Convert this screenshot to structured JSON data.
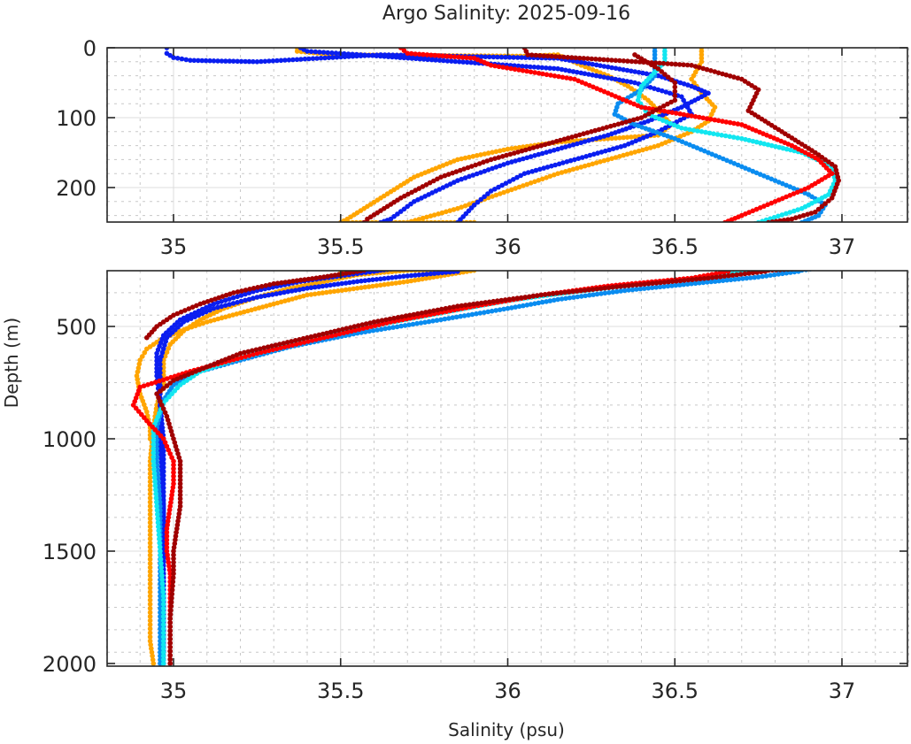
{
  "chart_data": {
    "type": "scatter",
    "title": "Argo Salinity: 2025-09-16",
    "xlabel": "Salinity (psu)",
    "ylabel": "Depth (m)",
    "xlim": [
      34.8,
      37.2
    ],
    "x_ticks": [
      35,
      35.5,
      36,
      36.5,
      37
    ],
    "x_tick_labels": [
      "35",
      "35.5",
      "36",
      "36.5",
      "37"
    ],
    "grid": true,
    "y_reversed": true,
    "panels": [
      {
        "name": "upper",
        "ylim": [
          0,
          250
        ],
        "y_ticks": [
          0,
          100,
          200
        ],
        "y_tick_labels": [
          "0",
          "100",
          "200"
        ]
      },
      {
        "name": "lower",
        "ylim": [
          250,
          2010
        ],
        "y_ticks": [
          500,
          1000,
          1500,
          2000
        ],
        "y_tick_labels": [
          "500",
          "1000",
          "1500",
          "2000"
        ]
      }
    ],
    "series": [
      {
        "name": "profile-orange-a",
        "color": "#FFA500",
        "points": [
          [
            35.37,
            0
          ],
          [
            35.37,
            5
          ],
          [
            35.48,
            10
          ],
          [
            36.05,
            12
          ],
          [
            36.15,
            10
          ],
          [
            36.22,
            25
          ],
          [
            36.3,
            40
          ],
          [
            36.36,
            55
          ],
          [
            36.42,
            75
          ],
          [
            36.46,
            95
          ],
          [
            36.49,
            110
          ],
          [
            36.45,
            125
          ],
          [
            36.3,
            130
          ],
          [
            36.15,
            135
          ],
          [
            36.0,
            145
          ],
          [
            35.85,
            160
          ],
          [
            35.72,
            185
          ],
          [
            35.62,
            215
          ],
          [
            35.52,
            245
          ],
          [
            35.5,
            250
          ],
          [
            35.9,
            250
          ],
          [
            35.8,
            275
          ],
          [
            35.7,
            300
          ],
          [
            35.55,
            330
          ],
          [
            35.4,
            360
          ],
          [
            35.3,
            400
          ],
          [
            35.2,
            440
          ],
          [
            35.1,
            480
          ],
          [
            35.02,
            520
          ],
          [
            34.96,
            560
          ],
          [
            34.92,
            600
          ],
          [
            34.9,
            650
          ],
          [
            34.89,
            720
          ],
          [
            34.9,
            800
          ],
          [
            34.92,
            880
          ],
          [
            34.93,
            950
          ],
          [
            34.93,
            1000
          ]
        ]
      },
      {
        "name": "profile-orange-b",
        "color": "#FFA500",
        "points": [
          [
            36.58,
            0
          ],
          [
            36.58,
            20
          ],
          [
            36.55,
            45
          ],
          [
            36.58,
            65
          ],
          [
            36.62,
            85
          ],
          [
            36.6,
            105
          ],
          [
            36.55,
            120
          ],
          [
            36.45,
            140
          ],
          [
            36.3,
            160
          ],
          [
            36.15,
            180
          ],
          [
            36.0,
            205
          ],
          [
            35.85,
            230
          ],
          [
            35.7,
            250
          ],
          [
            35.55,
            270
          ],
          [
            35.45,
            300
          ],
          [
            35.35,
            330
          ],
          [
            35.25,
            370
          ],
          [
            35.15,
            420
          ],
          [
            35.08,
            470
          ],
          [
            35.03,
            520
          ],
          [
            34.99,
            580
          ],
          [
            34.97,
            650
          ],
          [
            34.97,
            750
          ],
          [
            34.95,
            850
          ],
          [
            34.94,
            950
          ],
          [
            34.93,
            1100
          ],
          [
            34.93,
            1300
          ],
          [
            34.93,
            1500
          ],
          [
            34.93,
            1700
          ],
          [
            34.93,
            1900
          ],
          [
            34.94,
            2000
          ]
        ]
      },
      {
        "name": "profile-blue-a",
        "color": "#0A1EF0",
        "points": [
          [
            34.98,
            0
          ],
          [
            34.98,
            8
          ],
          [
            35.0,
            14
          ],
          [
            35.05,
            18
          ],
          [
            35.25,
            20
          ],
          [
            35.62,
            10
          ],
          [
            36.15,
            15
          ],
          [
            36.45,
            40
          ],
          [
            36.55,
            55
          ],
          [
            36.6,
            65
          ],
          [
            36.52,
            85
          ],
          [
            36.42,
            105
          ],
          [
            36.3,
            125
          ],
          [
            36.15,
            145
          ],
          [
            36.0,
            165
          ],
          [
            35.85,
            190
          ],
          [
            35.72,
            220
          ],
          [
            35.65,
            245
          ],
          [
            35.62,
            250
          ],
          [
            35.6,
            255
          ],
          [
            35.5,
            275
          ],
          [
            35.38,
            300
          ],
          [
            35.25,
            340
          ],
          [
            35.12,
            400
          ],
          [
            35.02,
            470
          ],
          [
            34.97,
            540
          ],
          [
            34.95,
            620
          ],
          [
            34.95,
            720
          ],
          [
            34.96,
            850
          ],
          [
            34.97,
            1000
          ],
          [
            34.97,
            1200
          ],
          [
            34.97,
            1400
          ],
          [
            34.97,
            1600
          ],
          [
            34.97,
            1800
          ],
          [
            34.97,
            2000
          ]
        ]
      },
      {
        "name": "profile-blue-b",
        "color": "#0A1EF0",
        "points": [
          [
            35.38,
            0
          ],
          [
            35.4,
            5
          ],
          [
            35.56,
            10
          ],
          [
            36.15,
            30
          ],
          [
            36.38,
            50
          ],
          [
            36.52,
            70
          ],
          [
            36.55,
            95
          ],
          [
            36.45,
            120
          ],
          [
            36.35,
            140
          ],
          [
            36.2,
            160
          ],
          [
            36.05,
            180
          ],
          [
            35.95,
            205
          ],
          [
            35.9,
            225
          ],
          [
            35.85,
            250
          ],
          [
            35.85,
            255
          ],
          [
            35.7,
            275
          ],
          [
            35.55,
            300
          ],
          [
            35.4,
            330
          ],
          [
            35.25,
            370
          ],
          [
            35.12,
            420
          ],
          [
            35.03,
            480
          ],
          [
            34.98,
            550
          ],
          [
            34.96,
            650
          ],
          [
            34.96,
            800
          ],
          [
            34.96,
            1000
          ],
          [
            34.97,
            1300
          ],
          [
            34.97,
            1600
          ],
          [
            34.97,
            1900
          ],
          [
            34.97,
            2000
          ]
        ]
      },
      {
        "name": "profile-dodgerblue",
        "color": "#0A8CF0",
        "points": [
          [
            36.44,
            0
          ],
          [
            36.44,
            20
          ],
          [
            36.44,
            40
          ],
          [
            36.4,
            60
          ],
          [
            36.33,
            80
          ],
          [
            36.32,
            95
          ],
          [
            36.38,
            110
          ],
          [
            36.5,
            130
          ],
          [
            36.6,
            150
          ],
          [
            36.7,
            170
          ],
          [
            36.8,
            190
          ],
          [
            36.9,
            210
          ],
          [
            36.95,
            225
          ],
          [
            36.93,
            240
          ],
          [
            36.88,
            250
          ],
          [
            36.87,
            255
          ],
          [
            36.75,
            280
          ],
          [
            36.55,
            310
          ],
          [
            36.35,
            340
          ],
          [
            36.15,
            380
          ],
          [
            36.0,
            420
          ],
          [
            35.8,
            470
          ],
          [
            35.55,
            530
          ],
          [
            35.35,
            590
          ],
          [
            35.2,
            650
          ],
          [
            35.08,
            700
          ],
          [
            35.0,
            760
          ],
          [
            34.97,
            830
          ],
          [
            34.95,
            950
          ],
          [
            34.95,
            1100
          ],
          [
            34.96,
            1300
          ],
          [
            34.96,
            1500
          ],
          [
            34.96,
            1700
          ],
          [
            34.96,
            1900
          ],
          [
            34.96,
            2000
          ]
        ]
      },
      {
        "name": "profile-cyan",
        "color": "#12E6F0",
        "points": [
          [
            36.47,
            0
          ],
          [
            36.47,
            20
          ],
          [
            36.43,
            40
          ],
          [
            36.4,
            55
          ],
          [
            36.39,
            75
          ],
          [
            36.42,
            95
          ],
          [
            36.52,
            115
          ],
          [
            36.7,
            130
          ],
          [
            36.88,
            150
          ],
          [
            36.97,
            170
          ],
          [
            36.98,
            190
          ],
          [
            36.96,
            210
          ],
          [
            36.88,
            230
          ],
          [
            36.75,
            250
          ],
          [
            36.72,
            255
          ],
          [
            36.6,
            280
          ],
          [
            36.4,
            310
          ],
          [
            36.2,
            345
          ],
          [
            36.0,
            385
          ],
          [
            35.8,
            440
          ],
          [
            35.55,
            510
          ],
          [
            35.35,
            580
          ],
          [
            35.2,
            640
          ],
          [
            35.08,
            700
          ],
          [
            35.02,
            760
          ],
          [
            34.97,
            840
          ],
          [
            34.94,
            950
          ],
          [
            34.94,
            1100
          ],
          [
            34.95,
            1300
          ],
          [
            34.96,
            1500
          ],
          [
            34.97,
            1700
          ],
          [
            34.97,
            1900
          ],
          [
            34.97,
            2000
          ]
        ]
      },
      {
        "name": "profile-red",
        "color": "#FF0000",
        "points": [
          [
            35.68,
            0
          ],
          [
            35.7,
            8
          ],
          [
            35.9,
            15
          ],
          [
            35.95,
            25
          ],
          [
            36.2,
            45
          ],
          [
            36.4,
            85
          ],
          [
            36.7,
            110
          ],
          [
            36.85,
            140
          ],
          [
            36.93,
            160
          ],
          [
            36.97,
            180
          ],
          [
            36.9,
            200
          ],
          [
            36.8,
            220
          ],
          [
            36.7,
            240
          ],
          [
            36.65,
            250
          ],
          [
            36.66,
            255
          ],
          [
            36.55,
            285
          ],
          [
            36.3,
            320
          ],
          [
            36.1,
            360
          ],
          [
            35.9,
            410
          ],
          [
            35.65,
            480
          ],
          [
            35.45,
            550
          ],
          [
            35.25,
            620
          ],
          [
            35.05,
            700
          ],
          [
            34.9,
            770
          ],
          [
            34.88,
            850
          ],
          [
            34.92,
            920
          ],
          [
            34.97,
            1000
          ],
          [
            35.0,
            1100
          ],
          [
            35.0,
            1200
          ],
          [
            34.99,
            1300
          ],
          [
            34.98,
            1400
          ],
          [
            34.98,
            1500
          ],
          [
            34.99,
            1600
          ],
          [
            34.99,
            1800
          ],
          [
            34.99,
            2000
          ]
        ]
      },
      {
        "name": "profile-darkred",
        "color": "#A00000",
        "points": [
          [
            36.05,
            0
          ],
          [
            36.06,
            10
          ],
          [
            36.55,
            25
          ],
          [
            36.7,
            45
          ],
          [
            36.75,
            60
          ],
          [
            36.72,
            90
          ],
          [
            36.82,
            120
          ],
          [
            36.92,
            150
          ],
          [
            36.98,
            170
          ],
          [
            36.99,
            190
          ],
          [
            36.97,
            215
          ],
          [
            36.92,
            235
          ],
          [
            36.85,
            245
          ],
          [
            36.78,
            250
          ],
          [
            36.77,
            255
          ],
          [
            36.6,
            285
          ],
          [
            36.35,
            320
          ],
          [
            36.1,
            360
          ],
          [
            35.85,
            410
          ],
          [
            35.6,
            480
          ],
          [
            35.4,
            550
          ],
          [
            35.2,
            620
          ],
          [
            35.1,
            680
          ],
          [
            35.0,
            740
          ],
          [
            34.95,
            800
          ],
          [
            34.98,
            900
          ],
          [
            35.0,
            1000
          ],
          [
            35.02,
            1100
          ],
          [
            35.02,
            1200
          ],
          [
            35.02,
            1300
          ],
          [
            35.01,
            1400
          ],
          [
            35.0,
            1500
          ],
          [
            35.0,
            1600
          ],
          [
            34.99,
            1800
          ],
          [
            34.99,
            2000
          ]
        ]
      },
      {
        "name": "profile-darkred-b",
        "color": "#A00000",
        "points": [
          [
            36.38,
            10
          ],
          [
            36.45,
            30
          ],
          [
            36.5,
            50
          ],
          [
            36.5,
            75
          ],
          [
            36.4,
            100
          ],
          [
            36.25,
            120
          ],
          [
            36.1,
            140
          ],
          [
            35.95,
            160
          ],
          [
            35.8,
            185
          ],
          [
            35.68,
            215
          ],
          [
            35.58,
            245
          ],
          [
            35.57,
            250
          ],
          [
            35.55,
            255
          ],
          [
            35.45,
            280
          ],
          [
            35.3,
            310
          ],
          [
            35.18,
            350
          ],
          [
            35.08,
            400
          ],
          [
            35.0,
            450
          ],
          [
            34.95,
            500
          ],
          [
            34.92,
            550
          ]
        ]
      }
    ]
  }
}
